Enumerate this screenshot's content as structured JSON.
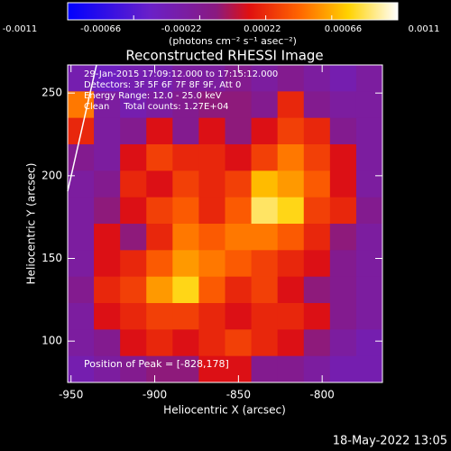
{
  "chart_data": {
    "type": "heatmap",
    "title": "Reconstructed RHESSI Image",
    "xlabel": "Heliocentric X (arcsec)",
    "ylabel": "Heliocentric Y (arcsec)",
    "xlim": [
      -952,
      -764
    ],
    "ylim": [
      75,
      267
    ],
    "xticks": [
      -950,
      -900,
      -850,
      -800
    ],
    "yticks": [
      100,
      150,
      200,
      250
    ],
    "colorbar": {
      "label": "(photons cm⁻² s⁻¹ asec⁻²)",
      "lim": [
        -0.0011,
        0.0011
      ],
      "ticks": [
        -0.0011,
        -0.00066,
        -0.00022,
        0.00022,
        0.00066,
        0.0011
      ]
    },
    "annotations": [
      "29-Jan-2015 17:09:12.000 to 17:15:12.000",
      "Detectors: 3F 5F 6F 7F 8F 9F, Att 0",
      "Energy Range: 12.0 - 25.0 keV",
      "Clean     Total counts: 1.27E+04"
    ],
    "peak_label": "Position of Peak = [-828,178]",
    "timestamp": "18-May-2022 13:05",
    "z": [
      [
        -0.0004,
        -0.0005,
        -0.0004,
        -0.0004,
        -0.0003,
        -0.0003,
        -0.0002,
        -0.0003,
        -0.0002,
        -0.0003,
        -0.0004,
        -0.0003
      ],
      [
        0.0005,
        -0.0003,
        -0.0004,
        -0.0003,
        -0.0002,
        -0.0001,
        -0.0001,
        -0.0002,
        0.0002,
        -0.0002,
        -0.0003,
        -0.0003
      ],
      [
        0.0002,
        -0.0003,
        -0.0002,
        0.0001,
        -0.0002,
        0.0001,
        -0.0001,
        0.0001,
        0.0003,
        0.0002,
        -0.0002,
        -0.0003
      ],
      [
        -0.0002,
        -0.0003,
        0.0001,
        0.0003,
        0.0002,
        0.0002,
        0.0001,
        0.0003,
        0.0005,
        0.0003,
        0.0001,
        -0.0003
      ],
      [
        -0.0003,
        -0.0002,
        0.0002,
        0.0001,
        0.0003,
        0.0002,
        0.0003,
        0.0007,
        0.0006,
        0.0004,
        0.0001,
        -0.0003
      ],
      [
        -0.0003,
        -0.0001,
        0.0001,
        0.0003,
        0.0004,
        0.0002,
        0.0004,
        0.0009,
        0.0008,
        0.0003,
        0.0002,
        -0.0002
      ],
      [
        -0.0003,
        0.0001,
        -0.0001,
        0.0002,
        0.0005,
        0.0004,
        0.0005,
        0.0005,
        0.0004,
        0.0002,
        -0.0001,
        -0.0003
      ],
      [
        -0.0003,
        0.0001,
        0.0002,
        0.0004,
        0.0006,
        0.0005,
        0.0004,
        0.0003,
        0.0002,
        0.0001,
        -0.0002,
        -0.0003
      ],
      [
        -0.0002,
        0.0002,
        0.0003,
        0.0006,
        0.0008,
        0.0004,
        0.0002,
        0.0003,
        0.0001,
        -0.0001,
        -0.0002,
        -0.0003
      ],
      [
        -0.0003,
        0.0001,
        0.0002,
        0.0003,
        0.0003,
        0.0002,
        0.0001,
        0.0002,
        0.0002,
        0.0001,
        -0.0002,
        -0.0003
      ],
      [
        -0.0003,
        -0.0002,
        0.0001,
        0.0002,
        0.0001,
        0.0002,
        0.0003,
        0.0002,
        0.0001,
        -0.0001,
        -0.0003,
        -0.0004
      ],
      [
        -0.0004,
        -0.0003,
        -0.0002,
        -0.0001,
        -0.0001,
        0.0001,
        0.0001,
        -0.0002,
        -0.0002,
        -0.0003,
        -0.0004,
        -0.0004
      ]
    ]
  }
}
